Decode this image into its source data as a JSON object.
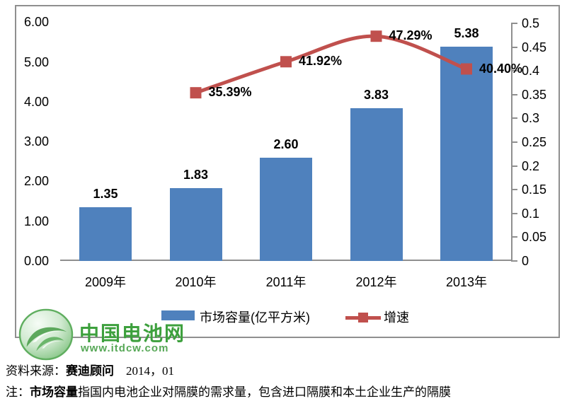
{
  "chart_data": {
    "type": "bar",
    "subtype": "bar-line-combo",
    "categories": [
      "2009年",
      "2010年",
      "2011年",
      "2012年",
      "2013年"
    ],
    "series": [
      {
        "name": "市场容量(亿平方米)",
        "chart_type": "bar",
        "axis": "left",
        "values": [
          1.35,
          1.83,
          2.6,
          3.83,
          5.38
        ],
        "labels": [
          "1.35",
          "1.83",
          "2.60",
          "3.83",
          "5.38"
        ]
      },
      {
        "name": "增速",
        "chart_type": "line",
        "axis": "right",
        "values": [
          null,
          0.3539,
          0.4192,
          0.4729,
          0.404
        ],
        "labels": [
          "",
          "35.39%",
          "41.92%",
          "47.29%",
          "40.40%"
        ]
      }
    ],
    "left_axis": {
      "ticks": [
        "6.00",
        "5.00",
        "4.00",
        "3.00",
        "2.00",
        "1.00",
        "0.00"
      ],
      "min": 0,
      "max": 6
    },
    "right_axis": {
      "ticks": [
        "0.5",
        "0.45",
        "0.4",
        "0.35",
        "0.3",
        "0.25",
        "0.2",
        "0.15",
        "0.1",
        "0.05",
        "0"
      ],
      "min": 0,
      "max": 0.5
    },
    "grid": false,
    "legend_position": "bottom",
    "title": ""
  },
  "colors": {
    "bar": "#4f81bd",
    "line": "#c0504d",
    "frame": "#8f8f8f",
    "logo_green": "#3da03d",
    "logo_url_green": "#57a857"
  },
  "legend": {
    "bar_label": "市场容量(亿平方米)",
    "line_label": "增速"
  },
  "logo": {
    "title": "中国电池网",
    "url_text": "www.itdcw.com"
  },
  "footer": {
    "source_prefix": "资料来源：",
    "source_bold": "赛迪顾问",
    "source_rest": "　2014，01",
    "note_prefix": "注：",
    "note_bold": "市场容量",
    "note_rest": "指国内电池企业对隔膜的需求量，包含进口隔膜和本土企业生产的隔膜"
  }
}
